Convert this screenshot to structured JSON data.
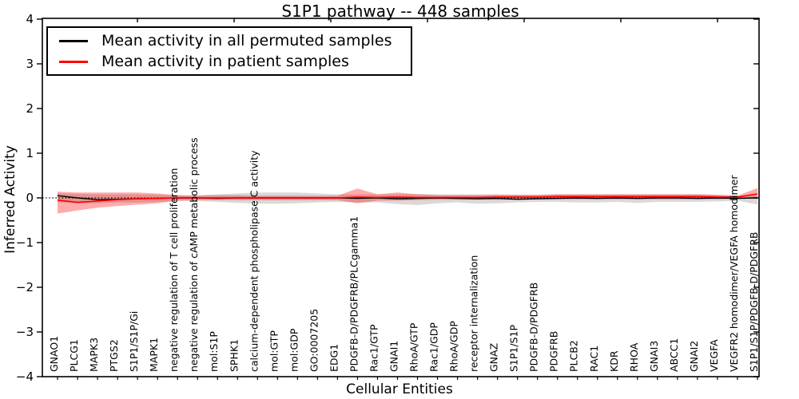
{
  "chart_data": {
    "type": "line",
    "title": "S1P1 pathway -- 448 samples",
    "xlabel": "Cellular Entities",
    "ylabel": "Inferred Activity",
    "ylim": [
      -4,
      4
    ],
    "yticks": [
      -4,
      -3,
      -2,
      -1,
      0,
      1,
      2,
      3,
      4
    ],
    "ytick_labels": [
      "−4",
      "−3",
      "−2",
      "−1",
      "0",
      "1",
      "2",
      "3",
      "4"
    ],
    "grid": false,
    "legend_position": "upper left",
    "zero_reference_line": 0,
    "categories": [
      "GNAO1",
      "PLCG1",
      "MAPK3",
      "PTGS2",
      "S1P1/S1P/Gi",
      "MAPK1",
      "negative regulation of T cell proliferation",
      "negative regulation of cAMP metabolic process",
      "mol:S1P",
      "SPHK1",
      "calcium-dependent phospholipase C activity",
      "mol:GTP",
      "mol:GDP",
      "GO:0007205",
      "EDG1",
      "PDGFB-D/PDGFRB/PLCgamma1",
      "Rac1/GTP",
      "GNAI1",
      "RhoA/GTP",
      "Rac1/GDP",
      "RhoA/GDP",
      "receptor internalization",
      "GNAZ",
      "S1P1/S1P",
      "PDGFB-D/PDGFRB",
      "PDGFRB",
      "PLCB2",
      "RAC1",
      "KDR",
      "RHOA",
      "GNAI3",
      "ABCC1",
      "GNAI2",
      "VEGFA",
      "VEGFR2 homodimer/VEGFA homodimer",
      "S1P1/S1P/PDGFB-D/PDGFRB"
    ],
    "series": [
      {
        "name": "Mean activity in all permuted samples",
        "color": "#000000",
        "line_style": "solid",
        "values": [
          0.05,
          0.0,
          -0.04,
          -0.03,
          -0.02,
          -0.01,
          0.0,
          0.0,
          -0.01,
          0.0,
          0.0,
          0.0,
          0.0,
          0.0,
          0.0,
          -0.01,
          0.0,
          -0.02,
          -0.01,
          0.0,
          -0.01,
          -0.02,
          -0.01,
          -0.03,
          -0.02,
          -0.01,
          0.0,
          -0.01,
          0.0,
          -0.01,
          0.0,
          0.0,
          -0.01,
          0.0,
          -0.01,
          0.0
        ],
        "band": {
          "color": "#808080",
          "opacity": 0.3,
          "upper": [
            0.1,
            0.09,
            0.08,
            0.08,
            0.08,
            0.07,
            0.06,
            0.06,
            0.08,
            0.1,
            0.12,
            0.12,
            0.12,
            0.1,
            0.08,
            0.08,
            0.08,
            0.08,
            0.09,
            0.08,
            0.08,
            0.08,
            0.08,
            0.07,
            0.07,
            0.08,
            0.08,
            0.08,
            0.08,
            0.08,
            0.08,
            0.08,
            0.08,
            0.07,
            0.05,
            0.06
          ],
          "lower": [
            -0.1,
            -0.12,
            -0.12,
            -0.1,
            -0.1,
            -0.09,
            -0.07,
            -0.07,
            -0.09,
            -0.11,
            -0.13,
            -0.13,
            -0.12,
            -0.1,
            -0.09,
            -0.1,
            -0.1,
            -0.14,
            -0.16,
            -0.12,
            -0.1,
            -0.13,
            -0.12,
            -0.1,
            -0.09,
            -0.09,
            -0.1,
            -0.1,
            -0.09,
            -0.11,
            -0.09,
            -0.09,
            -0.09,
            -0.08,
            -0.06,
            -0.15
          ]
        }
      },
      {
        "name": "Mean activity in patient samples",
        "color": "#ff0000",
        "line_style": "solid",
        "values": [
          -0.05,
          -0.1,
          -0.07,
          -0.04,
          -0.02,
          -0.01,
          0.0,
          0.0,
          0.0,
          0.0,
          0.0,
          0.0,
          0.0,
          0.0,
          0.0,
          0.02,
          0.01,
          0.02,
          0.01,
          0.01,
          0.01,
          0.01,
          0.02,
          0.02,
          0.02,
          0.03,
          0.03,
          0.03,
          0.03,
          0.03,
          0.03,
          0.03,
          0.03,
          0.02,
          0.02,
          0.09
        ],
        "band": {
          "color": "#ff0000",
          "opacity": 0.33,
          "upper": [
            0.14,
            0.12,
            0.12,
            0.12,
            0.12,
            0.1,
            0.06,
            0.05,
            0.06,
            0.06,
            0.05,
            0.05,
            0.05,
            0.05,
            0.05,
            0.21,
            0.08,
            0.12,
            0.08,
            0.06,
            0.06,
            0.06,
            0.07,
            0.07,
            0.07,
            0.08,
            0.08,
            0.08,
            0.08,
            0.08,
            0.08,
            0.08,
            0.08,
            0.07,
            0.05,
            0.22
          ],
          "lower": [
            -0.35,
            -0.28,
            -0.22,
            -0.18,
            -0.15,
            -0.12,
            -0.06,
            -0.05,
            -0.05,
            -0.05,
            -0.05,
            -0.05,
            -0.05,
            -0.05,
            -0.05,
            -0.12,
            -0.06,
            -0.06,
            -0.05,
            -0.04,
            -0.04,
            -0.04,
            -0.04,
            -0.04,
            -0.03,
            -0.03,
            -0.03,
            -0.03,
            -0.03,
            -0.03,
            -0.03,
            -0.03,
            -0.03,
            -0.03,
            -0.02,
            -0.02
          ]
        }
      }
    ]
  }
}
